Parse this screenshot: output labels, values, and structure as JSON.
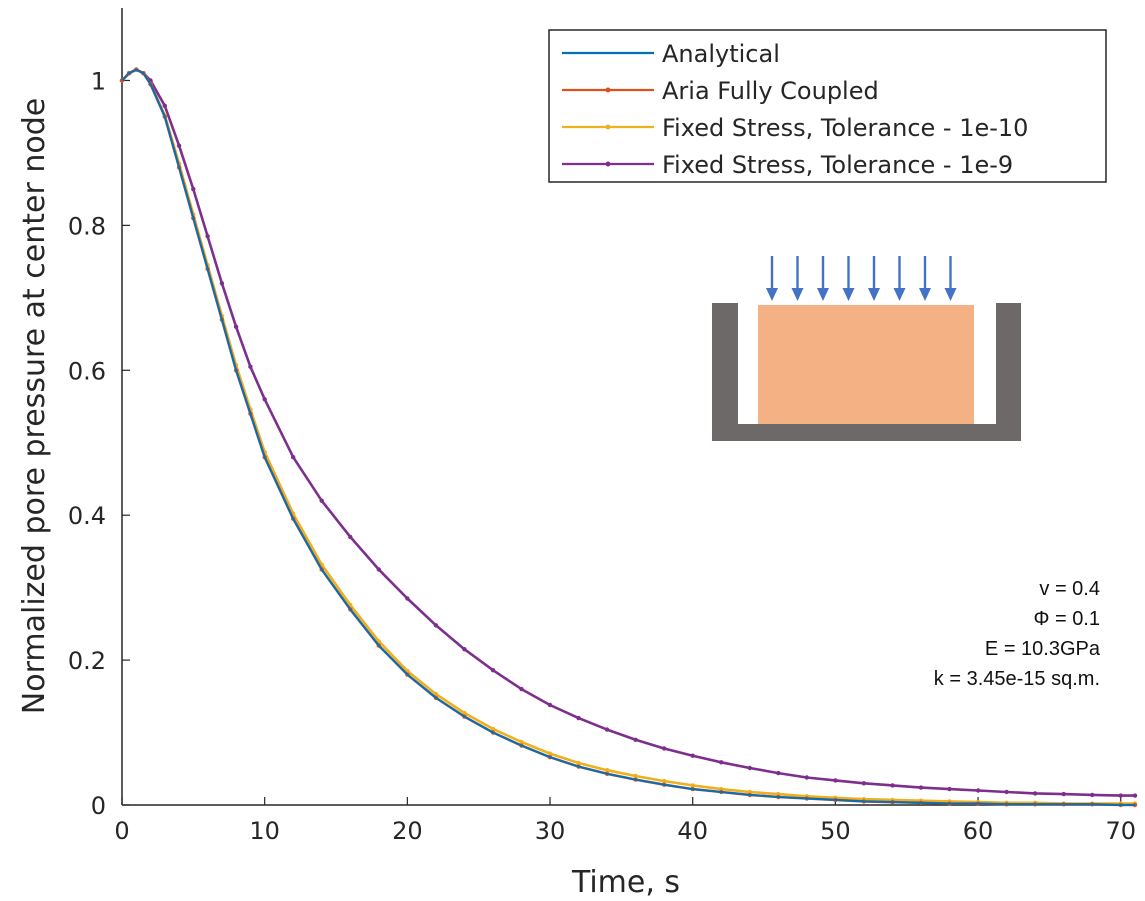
{
  "chart_data": {
    "type": "line",
    "title": "",
    "xlabel": "Time, s",
    "ylabel": "Normalized pore pressure at center node",
    "xlim": [
      0,
      71
    ],
    "ylim": [
      0,
      1.1
    ],
    "xticks": [
      0,
      10,
      20,
      30,
      40,
      50,
      60,
      70
    ],
    "yticks": [
      0,
      0.2,
      0.4,
      0.6,
      0.8,
      1
    ],
    "ytick_labels": [
      "0",
      "0.2",
      "0.4",
      "0.6",
      "0.8",
      "1"
    ],
    "grid": false,
    "legend_position": "top-right",
    "series": [
      {
        "name": "Analytical",
        "color": "#0072BD",
        "marker": "none",
        "x": [
          0,
          0.5,
          1,
          1.5,
          2,
          3,
          4,
          5,
          6,
          7,
          8,
          9,
          10,
          12,
          14,
          16,
          18,
          20,
          22,
          24,
          26,
          28,
          30,
          32,
          34,
          36,
          38,
          40,
          42,
          44,
          46,
          48,
          50,
          52,
          54,
          56,
          58,
          60,
          62,
          64,
          66,
          68,
          70,
          71
        ],
        "y": [
          1.0,
          1.01,
          1.015,
          1.01,
          0.995,
          0.95,
          0.88,
          0.81,
          0.74,
          0.67,
          0.6,
          0.54,
          0.48,
          0.395,
          0.325,
          0.27,
          0.22,
          0.18,
          0.148,
          0.122,
          0.1,
          0.082,
          0.066,
          0.053,
          0.043,
          0.035,
          0.028,
          0.022,
          0.018,
          0.014,
          0.011,
          0.009,
          0.007,
          0.005,
          0.004,
          0.003,
          0.002,
          0.002,
          0.001,
          0.001,
          0.001,
          0.001,
          0.0,
          0.0
        ]
      },
      {
        "name": "Aria Fully Coupled",
        "color": "#D95319",
        "marker": "dot",
        "x": [
          0,
          0.5,
          1,
          1.5,
          2,
          3,
          4,
          5,
          6,
          7,
          8,
          9,
          10,
          12,
          14,
          16,
          18,
          20,
          22,
          24,
          26,
          28,
          30,
          32,
          34,
          36,
          38,
          40,
          42,
          44,
          46,
          48,
          50,
          52,
          54,
          56,
          58,
          60,
          62,
          64,
          66,
          68,
          70,
          71
        ],
        "y": [
          1.0,
          1.01,
          1.015,
          1.01,
          0.995,
          0.95,
          0.88,
          0.81,
          0.74,
          0.67,
          0.6,
          0.54,
          0.48,
          0.395,
          0.325,
          0.27,
          0.22,
          0.18,
          0.148,
          0.122,
          0.1,
          0.082,
          0.066,
          0.053,
          0.043,
          0.035,
          0.028,
          0.022,
          0.018,
          0.014,
          0.011,
          0.009,
          0.007,
          0.005,
          0.004,
          0.003,
          0.002,
          0.002,
          0.001,
          0.001,
          0.001,
          0.001,
          0.0,
          0.0
        ]
      },
      {
        "name": "Fixed Stress, Tolerance - 1e-10",
        "color": "#EDB120",
        "marker": "dot",
        "x": [
          0,
          0.5,
          1,
          1.5,
          2,
          3,
          4,
          5,
          6,
          7,
          8,
          9,
          10,
          12,
          14,
          16,
          18,
          20,
          22,
          24,
          26,
          28,
          30,
          32,
          34,
          36,
          38,
          40,
          42,
          44,
          46,
          48,
          50,
          52,
          54,
          56,
          58,
          60,
          62,
          64,
          66,
          68,
          70,
          71
        ],
        "y": [
          1.0,
          1.01,
          1.015,
          1.01,
          0.995,
          0.952,
          0.885,
          0.815,
          0.745,
          0.675,
          0.607,
          0.546,
          0.487,
          0.402,
          0.332,
          0.276,
          0.226,
          0.185,
          0.153,
          0.127,
          0.105,
          0.087,
          0.071,
          0.058,
          0.048,
          0.04,
          0.033,
          0.027,
          0.022,
          0.018,
          0.015,
          0.012,
          0.01,
          0.008,
          0.007,
          0.006,
          0.005,
          0.004,
          0.003,
          0.003,
          0.002,
          0.002,
          0.002,
          0.002
        ]
      },
      {
        "name": "Fixed Stress, Tolerance - 1e-9",
        "color": "#7E2F8E",
        "marker": "dot",
        "x": [
          0,
          0.5,
          1,
          1.5,
          2,
          3,
          4,
          5,
          6,
          7,
          8,
          9,
          10,
          12,
          14,
          16,
          18,
          20,
          22,
          24,
          26,
          28,
          30,
          32,
          34,
          36,
          38,
          40,
          42,
          44,
          46,
          48,
          50,
          52,
          54,
          56,
          58,
          60,
          62,
          64,
          66,
          68,
          70,
          71
        ],
        "y": [
          1.0,
          1.01,
          1.015,
          1.01,
          1.0,
          0.965,
          0.91,
          0.85,
          0.785,
          0.72,
          0.66,
          0.605,
          0.56,
          0.48,
          0.42,
          0.37,
          0.325,
          0.285,
          0.248,
          0.215,
          0.186,
          0.16,
          0.138,
          0.12,
          0.104,
          0.09,
          0.078,
          0.068,
          0.059,
          0.051,
          0.044,
          0.038,
          0.034,
          0.03,
          0.027,
          0.024,
          0.022,
          0.02,
          0.018,
          0.016,
          0.015,
          0.014,
          0.013,
          0.013
        ]
      }
    ]
  },
  "inset": {
    "container_color": "#6D6968",
    "sample_color": "#F4B183",
    "arrow_color": "#4472C4",
    "arrow_count": 8
  },
  "parameters": [
    "v = 0.4",
    "Φ = 0.1",
    "E = 10.3GPa",
    "k = 3.45e-15 sq.m."
  ]
}
